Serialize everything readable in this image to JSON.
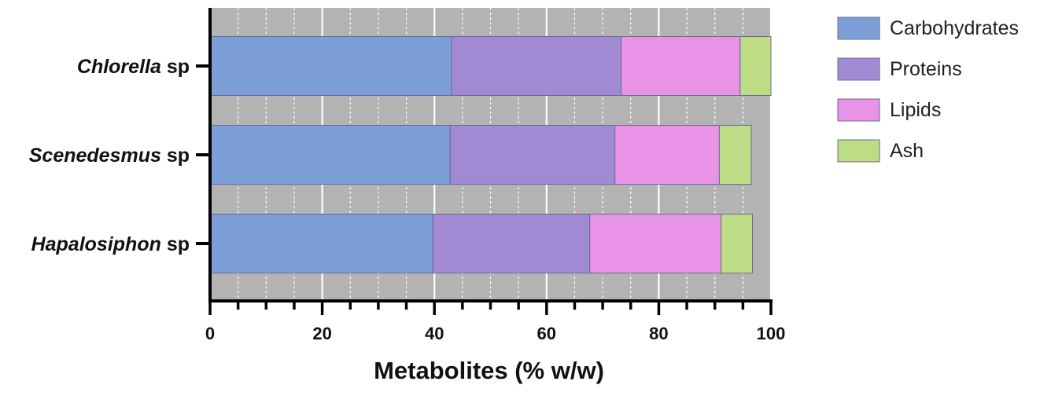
{
  "chart_data": {
    "type": "bar",
    "orientation": "horizontal",
    "stacked": true,
    "categories": [
      {
        "name": "Chlorella",
        "suffix": "sp"
      },
      {
        "name": "Scenedesmus",
        "suffix": "sp"
      },
      {
        "name": "Hapalosiphon",
        "suffix": "sp"
      }
    ],
    "series": [
      {
        "name": "Carbohydrates",
        "color": "#7b9fd6",
        "values": [
          43.0,
          42.8,
          39.7
        ]
      },
      {
        "name": "Proteins",
        "color": "#a289d4",
        "values": [
          30.3,
          29.4,
          28.0
        ]
      },
      {
        "name": "Lipids",
        "color": "#e893e8",
        "values": [
          21.2,
          18.6,
          23.4
        ]
      },
      {
        "name": "Ash",
        "color": "#bcdc86",
        "values": [
          5.5,
          5.7,
          5.6
        ]
      }
    ],
    "xlabel": "Metabolites (% w/w)",
    "xlim": [
      0,
      100
    ],
    "xticks": [
      0,
      20,
      40,
      60,
      80,
      100
    ],
    "minor_tick_step": 5,
    "grid": true,
    "plot_background": "#b3b3b3",
    "legend_position": "right"
  }
}
